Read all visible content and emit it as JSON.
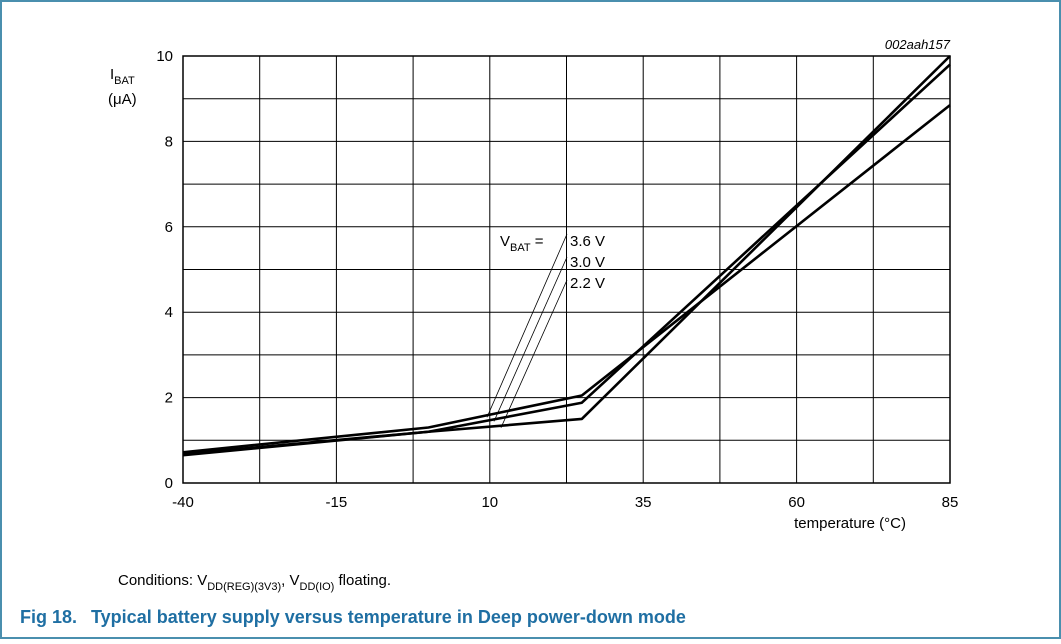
{
  "chart_data": {
    "type": "line",
    "id_label": "002aah157",
    "ylabel": {
      "main": "I",
      "sub": "BAT",
      "unit": "(μA)"
    },
    "xlabel": "temperature (°C)",
    "x": [
      -40,
      0,
      25,
      85
    ],
    "series": [
      {
        "name": "3.6 V",
        "color": "#000000",
        "values": [
          0.72,
          1.3,
          2.05,
          8.85
        ]
      },
      {
        "name": "3.0 V",
        "color": "#000000",
        "values": [
          0.68,
          1.2,
          1.88,
          9.8
        ]
      },
      {
        "name": "2.2 V",
        "color": "#000000",
        "values": [
          0.65,
          1.2,
          1.5,
          10.0
        ]
      }
    ],
    "legend_title": {
      "main": "V",
      "sub": "BAT",
      "tail": " ="
    },
    "xlim": [
      -40,
      85
    ],
    "ylim": [
      0,
      10
    ],
    "xticks": [
      -40,
      -15,
      10,
      35,
      60,
      85
    ],
    "yticks": [
      0,
      2,
      4,
      6,
      8,
      10
    ],
    "xgrid": [
      -40,
      -27.5,
      -15,
      -2.5,
      10,
      22.5,
      35,
      47.5,
      60,
      72.5,
      85
    ],
    "ygrid": [
      0,
      1,
      2,
      3,
      4,
      5,
      6,
      7,
      8,
      9,
      10
    ],
    "grid": true,
    "conditions": {
      "lead": "Conditions: V",
      "sub1": "DD(REG)(3V3)",
      "mid": ", V",
      "sub2": "DD(IO)",
      "tail": " floating."
    },
    "caption": {
      "number": "Fig 18.",
      "text": "Typical battery supply versus temperature in Deep power-down mode"
    }
  }
}
